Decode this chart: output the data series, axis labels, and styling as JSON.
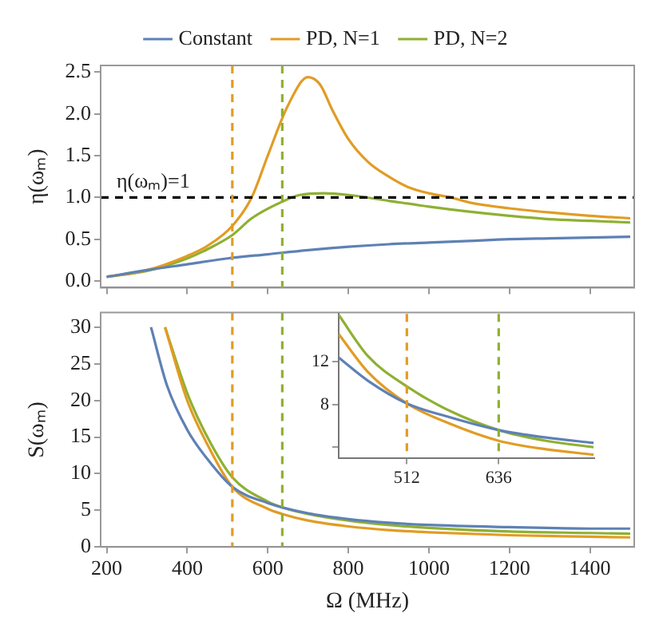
{
  "chart_data": [
    {
      "type": "line",
      "ylabel": "η(ωₘ)",
      "legend": "top",
      "marker": "none",
      "grid": false,
      "tick_labels": "y",
      "xlim": [
        185,
        1510
      ],
      "xticks": [
        200,
        400,
        600,
        800,
        1000,
        1200,
        1400
      ],
      "ylim": [
        -0.08,
        2.58
      ],
      "yticks": [
        {
          "value": 0,
          "label": "0.0"
        },
        0.5,
        {
          "value": 1,
          "label": "1.0"
        },
        1.5,
        {
          "value": 2,
          "label": "2.0"
        },
        2.5
      ],
      "series": [
        {
          "name": "Constant",
          "color": "#5e81b5",
          "x": [
            200,
            300,
            400,
            500,
            600,
            700,
            800,
            900,
            1000,
            1100,
            1200,
            1300,
            1400,
            1500
          ],
          "values": [
            0.05,
            0.13,
            0.2,
            0.27,
            0.32,
            0.37,
            0.41,
            0.44,
            0.46,
            0.48,
            0.5,
            0.51,
            0.52,
            0.53
          ]
        },
        {
          "name": "PD, N=1",
          "color": "#e19c24",
          "x": [
            200,
            300,
            400,
            450,
            512,
            560,
            600,
            650,
            700,
            730,
            760,
            800,
            850,
            900,
            950,
            1000,
            1055,
            1100,
            1200,
            1300,
            1400,
            1500
          ],
          "values": [
            0.05,
            0.13,
            0.3,
            0.42,
            0.66,
            1.0,
            1.5,
            2.1,
            2.44,
            2.35,
            2.05,
            1.7,
            1.42,
            1.25,
            1.12,
            1.05,
            1.0,
            0.94,
            0.87,
            0.82,
            0.78,
            0.75
          ]
        },
        {
          "name": "PD, N=2",
          "color": "#8fb032",
          "x": [
            200,
            300,
            400,
            450,
            512,
            560,
            636,
            680,
            740,
            800,
            900,
            1000,
            1100,
            1200,
            1300,
            1400,
            1500
          ],
          "values": [
            0.05,
            0.12,
            0.27,
            0.38,
            0.55,
            0.75,
            0.95,
            1.03,
            1.05,
            1.03,
            0.96,
            0.89,
            0.83,
            0.78,
            0.74,
            0.72,
            0.7
          ]
        }
      ],
      "ref_lines": [
        {
          "axis": "y",
          "value": 1,
          "label": "η(ωₘ)=1",
          "color": "#000000",
          "line_style": "dashed"
        },
        {
          "axis": "x",
          "value": 512,
          "color": "#e19c24",
          "line_style": "dashed"
        },
        {
          "axis": "x",
          "value": 636,
          "color": "#8fb032",
          "line_style": "dashed"
        }
      ]
    },
    {
      "type": "line",
      "xlabel": "Ω (MHz)",
      "ylabel": "S(ωₘ)",
      "legend": false,
      "marker": "none",
      "grid": false,
      "xlim": [
        185,
        1510
      ],
      "xticks": [
        200,
        400,
        600,
        800,
        1000,
        1200,
        1400
      ],
      "ylim": [
        0,
        32
      ],
      "yticks": [
        0,
        5,
        10,
        15,
        20,
        25,
        30
      ],
      "series": [
        {
          "color": "#5e81b5",
          "x": [
            310,
            350,
            400,
            450,
            512,
            600,
            700,
            800,
            900,
            1000,
            1200,
            1400,
            1500
          ],
          "values": [
            30,
            22,
            16,
            12,
            8.2,
            6,
            4.6,
            3.8,
            3.3,
            3.0,
            2.7,
            2.5,
            2.5
          ]
        },
        {
          "color": "#e19c24",
          "x": [
            345,
            400,
            450,
            512,
            600,
            636,
            700,
            800,
            900,
            1000,
            1200,
            1400,
            1500
          ],
          "values": [
            30,
            20,
            14,
            8.2,
            5.2,
            4.5,
            3.6,
            2.8,
            2.3,
            2.0,
            1.6,
            1.4,
            1.3
          ]
        },
        {
          "color": "#8fb032",
          "x": [
            345,
            400,
            450,
            512,
            600,
            636,
            700,
            800,
            900,
            1000,
            1200,
            1400,
            1500
          ],
          "values": [
            30,
            21,
            15,
            9.5,
            6.2,
            5.4,
            4.5,
            3.6,
            3.0,
            2.6,
            2.1,
            1.9,
            1.8
          ]
        }
      ],
      "ref_lines": [
        {
          "axis": "x",
          "value": 512,
          "color": "#e19c24",
          "line_style": "dashed"
        },
        {
          "axis": "x",
          "value": 636,
          "color": "#8fb032",
          "line_style": "dashed"
        }
      ]
    },
    {
      "type": "line",
      "legend": false,
      "marker": "none",
      "grid": false,
      "xlim": [
        420,
        765
      ],
      "xticks": [
        512,
        636
      ],
      "ylim": [
        3,
        16.5
      ],
      "yticks": [
        {
          "value": 4,
          "label": null
        },
        8,
        12
      ],
      "series": [
        {
          "color": "#5e81b5",
          "x": [
            420,
            460,
            512,
            570,
            636,
            700,
            764
          ],
          "values": [
            12.4,
            10.2,
            8.1,
            6.8,
            5.6,
            4.9,
            4.4
          ]
        },
        {
          "color": "#e19c24",
          "x": [
            420,
            460,
            512,
            570,
            636,
            700,
            764
          ],
          "values": [
            14.6,
            11.0,
            8.1,
            6.2,
            4.6,
            3.8,
            3.3
          ]
        },
        {
          "color": "#8fb032",
          "x": [
            420,
            460,
            512,
            570,
            636,
            700,
            764
          ],
          "values": [
            16.4,
            12.5,
            9.7,
            7.4,
            5.6,
            4.6,
            4.0
          ]
        }
      ],
      "ref_lines": [
        {
          "axis": "x",
          "value": 512,
          "color": "#e19c24",
          "line_style": "dashed"
        },
        {
          "axis": "x",
          "value": 636,
          "color": "#8fb032",
          "line_style": "dashed"
        }
      ]
    }
  ]
}
